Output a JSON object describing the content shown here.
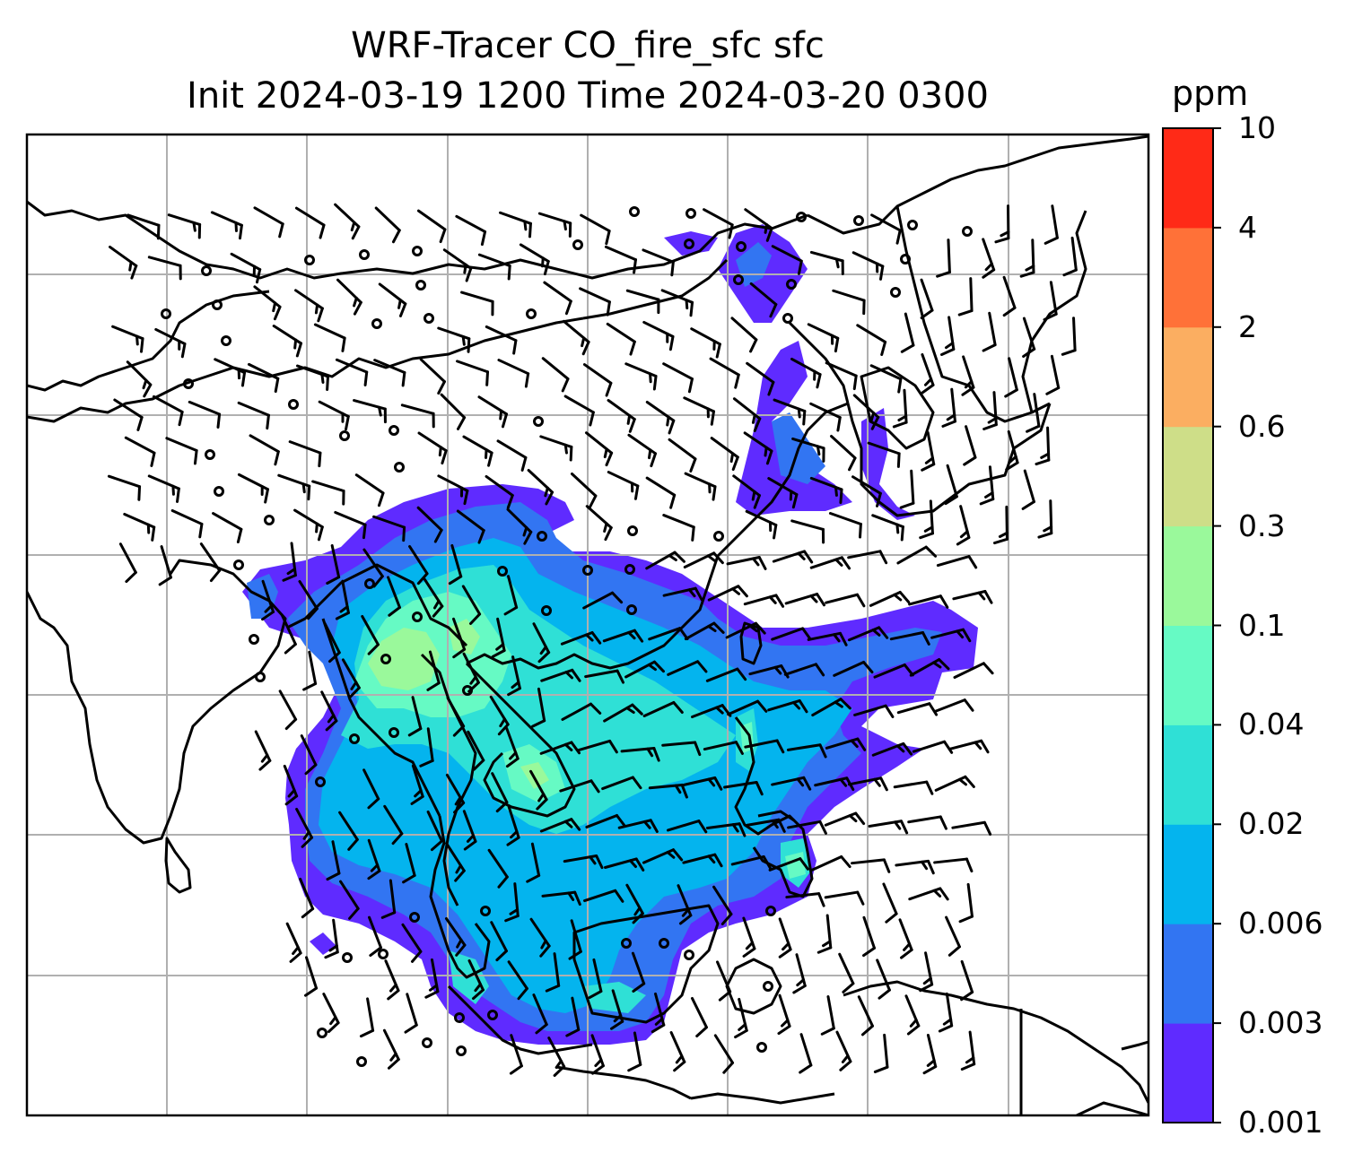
{
  "title": {
    "line1": "WRF-Tracer CO_fire_sfc sfc",
    "line2": "Init 2024-03-19 1200 Time 2024-03-20 0300"
  },
  "colorbar": {
    "unit": "ppm",
    "levels": [
      "0.001",
      "0.003",
      "0.006",
      "0.02",
      "0.04",
      "0.1",
      "0.3",
      "0.6",
      "2",
      "4",
      "10"
    ],
    "colors": [
      "#5f2bff",
      "#3275f2",
      "#04b4ee",
      "#2fe0d6",
      "#66fac4",
      "#9af99b",
      "#cede88",
      "#fbae61",
      "#ff7138",
      "#ff2a17"
    ]
  },
  "map": {
    "gridlines": true,
    "land_outline": "#000000",
    "grid_color": "#b0b0b0",
    "wind_symbol": "wind barbs",
    "calm_symbol": "open circle"
  }
}
